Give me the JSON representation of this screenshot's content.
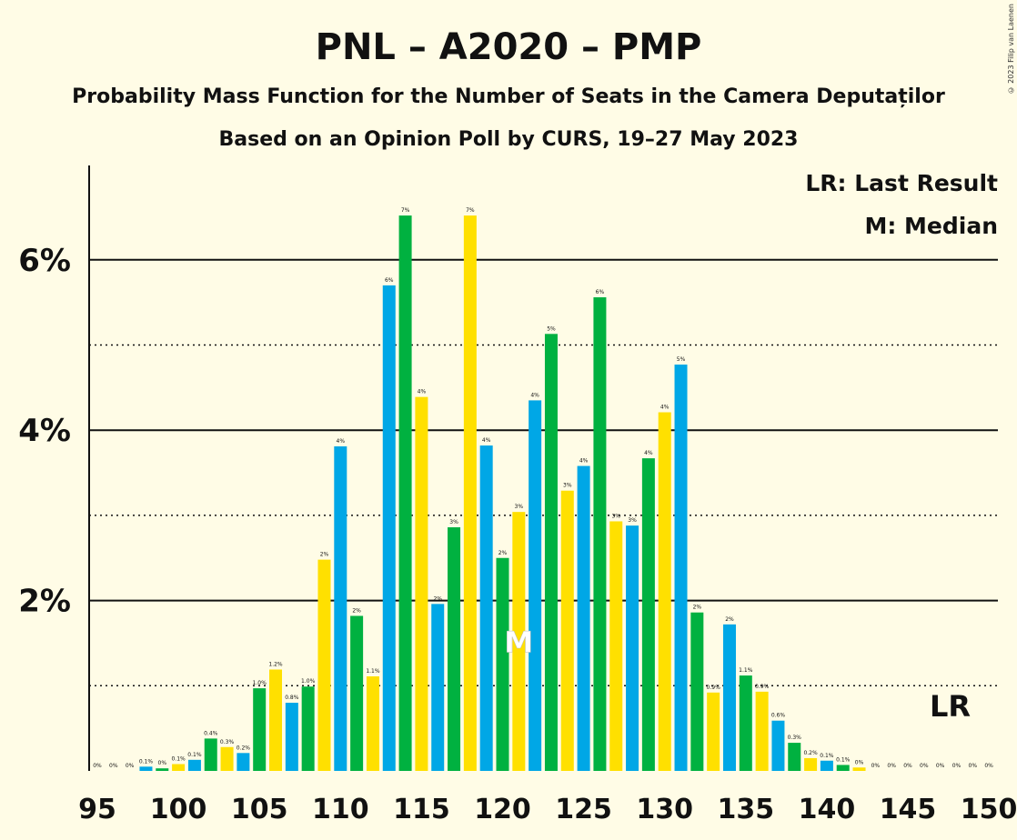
{
  "title": "PNL – A2020 – PMP",
  "subtitle": "Probability Mass Function for the Number of Seats in the Camera Deputaților",
  "subtitle2": "Based on an Opinion Poll by CURS, 19–27 May 2023",
  "copyright": "© 2023 Filip van Laenen",
  "legend": {
    "lr": "LR: Last Result",
    "m": "M: Median"
  },
  "colors": [
    "#00A7E6",
    "#00B140",
    "#FFE000"
  ],
  "chart_data": {
    "type": "bar",
    "x_ticks": [
      95,
      100,
      105,
      110,
      115,
      120,
      125,
      130,
      135,
      140,
      145,
      150
    ],
    "y_ticks": [
      {
        "value": 2,
        "label": "2%"
      },
      {
        "value": 4,
        "label": "4%"
      },
      {
        "value": 6,
        "label": "6%"
      }
    ],
    "ylim": [
      0,
      7
    ],
    "xlim": [
      95,
      150
    ],
    "median": 121,
    "median_label": "M",
    "last_result": 148,
    "last_result_label": "LR",
    "x": [
      95,
      96,
      97,
      98,
      99,
      100,
      101,
      102,
      103,
      104,
      105,
      106,
      107,
      108,
      109,
      110,
      111,
      112,
      113,
      114,
      115,
      116,
      117,
      118,
      119,
      120,
      121,
      122,
      123,
      124,
      125,
      126,
      127,
      128,
      129,
      130,
      131,
      132,
      133,
      134,
      135,
      136,
      137,
      138,
      139,
      140,
      141,
      142,
      143,
      144,
      145,
      146,
      147,
      148,
      149,
      150
    ],
    "values": [
      0,
      0,
      0,
      0.05,
      0.03,
      0.08,
      0.13,
      0.38,
      0.28,
      0.21,
      0.97,
      1.19,
      0.8,
      0.99,
      2.48,
      3.81,
      1.82,
      1.11,
      5.7,
      6.52,
      4.39,
      1.96,
      2.86,
      6.52,
      3.82,
      2.5,
      3.04,
      4.35,
      5.13,
      3.29,
      3.58,
      5.56,
      2.93,
      2.88,
      3.67,
      4.21,
      4.77,
      1.86,
      0.92,
      1.72,
      1.12,
      0.93,
      0.59,
      0.33,
      0.15,
      0.12,
      0.07,
      0.04,
      0,
      0,
      0,
      0,
      0,
      0,
      0,
      0
    ],
    "labels": [
      "0%",
      "0%",
      "0%",
      "0.1%",
      "0%",
      "0.1%",
      "0.1%",
      "0.4%",
      "0.3%",
      "0.2%",
      "1.0%",
      "1.2%",
      "0.8%",
      "1.0%",
      "2%",
      "4%",
      "2%",
      "1.1%",
      "6%",
      "7%",
      "4%",
      "2%",
      "3%",
      "7%",
      "4%",
      "2%",
      "3%",
      "4%",
      "5%",
      "3%",
      "4%",
      "6%",
      "3%",
      "3%",
      "4%",
      "4%",
      "5%",
      "2%",
      "0.9%",
      "2%",
      "1.1%",
      "0.9%",
      "0.6%",
      "0.3%",
      "0.2%",
      "0.1%",
      "0.1%",
      "0%",
      "0%",
      "0%",
      "0%",
      "0%",
      "0%",
      "0%",
      "0%",
      "0%"
    ]
  }
}
